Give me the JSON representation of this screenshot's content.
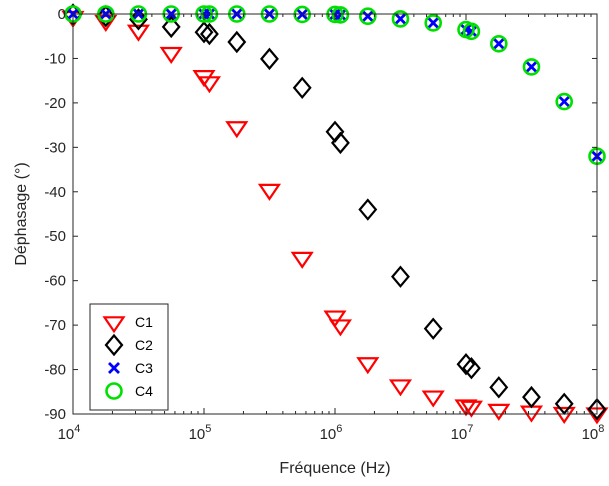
{
  "chart_data": {
    "type": "scatter",
    "xlabel": "Fréquence (Hz)",
    "ylabel": "Déphasage (°)",
    "x_scale": "log",
    "xlim": [
      10000,
      100000000
    ],
    "ylim": [
      -90,
      0
    ],
    "x_ticks": [
      {
        "value": 10000,
        "base": "10",
        "exp": "4"
      },
      {
        "value": 100000,
        "base": "10",
        "exp": "5"
      },
      {
        "value": 1000000,
        "base": "10",
        "exp": "6"
      },
      {
        "value": 10000000,
        "base": "10",
        "exp": "7"
      },
      {
        "value": 100000000,
        "base": "10",
        "exp": "8"
      }
    ],
    "y_ticks": [
      0,
      -10,
      -20,
      -30,
      -40,
      -50,
      -60,
      -70,
      -80,
      -90
    ],
    "y_tick_labels": [
      "0",
      "-10",
      "-20",
      "-30",
      "-40",
      "-50",
      "-60",
      "-70",
      "-80",
      "-90"
    ],
    "grid": false,
    "legend_position": "bottom-left",
    "series": [
      {
        "name": "C1",
        "marker": "triangle-down",
        "color": "#ff0000",
        "x": [
          10000,
          17800,
          31600,
          56200,
          100000,
          110000,
          178000,
          316000,
          562000,
          1000000,
          1100000,
          1780000,
          3160000,
          5620000,
          10000000,
          11000000,
          17800000,
          31600000,
          56200000,
          100000000
        ],
        "y": [
          -0.6,
          -1.5,
          -3.7,
          -8.7,
          -13.9,
          -15.3,
          -25.4,
          -39.5,
          -54.8,
          -68.0,
          -70.0,
          -78.5,
          -83.5,
          -86.0,
          -88.0,
          -88.3,
          -89.0,
          -89.4,
          -89.7,
          -89.8
        ]
      },
      {
        "name": "C2",
        "marker": "diamond",
        "color": "#000000",
        "x": [
          10000,
          17800,
          31600,
          56200,
          100000,
          110000,
          178000,
          316000,
          562000,
          1000000,
          1100000,
          1780000,
          3160000,
          5620000,
          10000000,
          11000000,
          17800000,
          31600000,
          56200000,
          100000000
        ],
        "y": [
          -0.1,
          -0.5,
          -1.2,
          -2.9,
          -4.1,
          -4.5,
          -6.3,
          -10.1,
          -16.6,
          -26.5,
          -29.0,
          -44.0,
          -59.1,
          -70.8,
          -78.8,
          -79.7,
          -84.0,
          -86.2,
          -87.7,
          -88.9
        ]
      },
      {
        "name": "C3",
        "marker": "x",
        "color": "#0000ff",
        "x": [
          10000,
          17800,
          31600,
          56200,
          100000,
          110000,
          178000,
          316000,
          562000,
          1000000,
          1100000,
          1780000,
          3160000,
          5620000,
          10000000,
          11000000,
          17800000,
          31600000,
          56200000,
          100000000
        ],
        "y": [
          0.0,
          0.0,
          0.0,
          0.0,
          0.0,
          0.0,
          0.0,
          0.0,
          -0.1,
          -0.1,
          -0.2,
          -0.5,
          -1.1,
          -2.0,
          -3.5,
          -3.9,
          -6.7,
          -11.9,
          -19.7,
          -32.0
        ]
      },
      {
        "name": "C4",
        "marker": "circle",
        "color": "#00e000",
        "x": [
          10000,
          17800,
          31600,
          56200,
          100000,
          110000,
          178000,
          316000,
          562000,
          1000000,
          1100000,
          1780000,
          3160000,
          5620000,
          10000000,
          11000000,
          17800000,
          31600000,
          56200000,
          100000000
        ],
        "y": [
          0.0,
          0.0,
          0.0,
          0.0,
          0.0,
          0.0,
          0.0,
          0.0,
          -0.1,
          -0.1,
          -0.2,
          -0.5,
          -1.1,
          -2.0,
          -3.5,
          -3.9,
          -6.7,
          -11.9,
          -19.7,
          -32.0
        ]
      }
    ]
  }
}
